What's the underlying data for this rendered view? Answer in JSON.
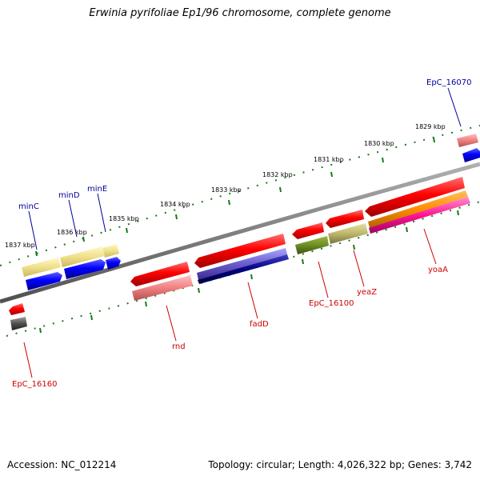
{
  "title": "Erwinia pyrifoliae Ep1/96 chromosome, complete genome",
  "footer": {
    "accession": "Accession: NC_012214",
    "summary": "Topology: circular; Length: 4,026,322 bp; Genes: 3,742"
  },
  "colors": {
    "backbone": "#808080",
    "tick": "#1a7a1a",
    "label_top": "#000099",
    "label_bottom": "#cc0000"
  },
  "kbp_labels": [
    "1837 kbp",
    "1836 kbp",
    "1835 kbp",
    "1834 kbp",
    "1833 kbp",
    "1832 kbp",
    "1831 kbp",
    "1830 kbp",
    "1829 kbp"
  ],
  "gene_labels_top": [
    "minC",
    "minD",
    "minE",
    "EpC_16070"
  ],
  "gene_labels_bottom": [
    "EpC_16160",
    "rnd",
    "fadD",
    "EpC_16100",
    "yeaZ",
    "yoaA"
  ]
}
